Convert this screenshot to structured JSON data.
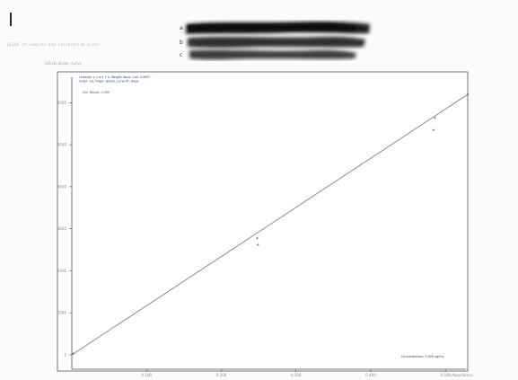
{
  "header": {
    "cursor": "|",
    "note": "ELISA of samples and calibration plots"
  },
  "blot": {
    "lane_labels": [
      "a",
      "b",
      "c"
    ]
  },
  "chart_panel": {
    "label": "Calibration curve"
  },
  "chart_data": {
    "type": "scatter",
    "title": "",
    "xlabel": "Absorbance",
    "ylabel": "",
    "legend_lines": [
      "Linearity: y = a·x + b, Weight: None, Corr. 0.9997",
      "Order: 1st, Origin: Ignore, Curve fit: linear"
    ],
    "annotation": "Std. Result: 0.999",
    "corner_label": "Concentration: 0.000 ug/mL",
    "xlim": [
      0,
      0.525
    ],
    "ylim": [
      -500,
      6500
    ],
    "x_ticks": [
      0.1,
      0.2,
      0.3,
      0.4,
      0.5
    ],
    "x_tick_labels": [
      "0.100",
      "0.200",
      "0.300",
      "0.400",
      "0.500"
    ],
    "x_end_label": "Absorbance",
    "y_ticks": [
      0,
      1000,
      2000,
      3000,
      4000,
      5000,
      6000
    ],
    "y_tick_labels": [
      "0",
      "1000",
      "2000",
      "3000",
      "4000",
      "5000",
      "6000"
    ],
    "line": {
      "x": [
        0,
        0.53
      ],
      "y": [
        0,
        6200
      ]
    },
    "points": [
      {
        "x": 0.002,
        "y": 30
      },
      {
        "x": 0.248,
        "y": 2780
      },
      {
        "x": 0.249,
        "y": 2620
      },
      {
        "x": 0.484,
        "y": 5350
      },
      {
        "x": 0.486,
        "y": 5640
      },
      {
        "x": 0.53,
        "y": 6200
      }
    ],
    "grid": false,
    "colors": {
      "line": "#777777",
      "axis": "#555555",
      "text": "#8a8a8a",
      "point": "#666666",
      "legend_text": "#1a3f7a"
    }
  }
}
